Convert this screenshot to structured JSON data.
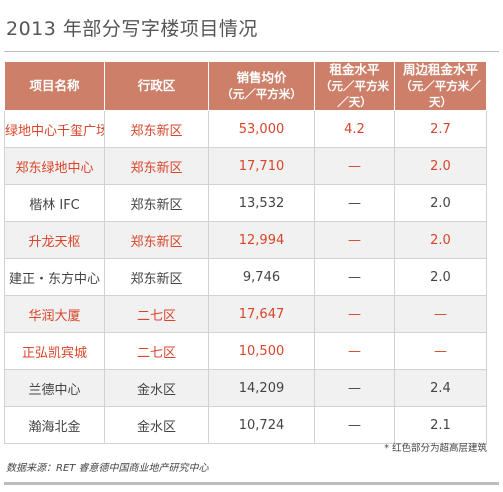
{
  "title": "2013 年部分写字楼项目情况",
  "headers": [
    {
      "main": "项目名称",
      "sub": ""
    },
    {
      "main": "行政区",
      "sub": ""
    },
    {
      "main": "销售均价",
      "sub": "（元／平方米）"
    },
    {
      "main": "租金水平",
      "sub": "（元／平方米／天）"
    },
    {
      "main": "周边租金水平",
      "sub": "（元／平方米／天）"
    }
  ],
  "rows": [
    {
      "name": "绿地中心千玺广场",
      "district": "郑东新区",
      "price": "53,000",
      "rent": "4.2",
      "nearby": "2.7",
      "highlight": true
    },
    {
      "name": "郑东绿地中心",
      "district": "郑东新区",
      "price": "17,710",
      "rent": "—",
      "nearby": "2.0",
      "highlight": true
    },
    {
      "name": "楷林 IFC",
      "district": "郑东新区",
      "price": "13,532",
      "rent": "—",
      "nearby": "2.0",
      "highlight": false
    },
    {
      "name": "升龙天枢",
      "district": "郑东新区",
      "price": "12,994",
      "rent": "—",
      "nearby": "2.0",
      "highlight": true
    },
    {
      "name": "建正・东方中心",
      "district": "郑东新区",
      "price": "9,746",
      "rent": "—",
      "nearby": "2.0",
      "highlight": false
    },
    {
      "name": "华润大厦",
      "district": "二七区",
      "price": "17,647",
      "rent": "—",
      "nearby": "—",
      "highlight": true
    },
    {
      "name": "正弘凯宾城",
      "district": "二七区",
      "price": "10,500",
      "rent": "—",
      "nearby": "—",
      "highlight": true
    },
    {
      "name": "兰德中心",
      "district": "金水区",
      "price": "14,209",
      "rent": "—",
      "nearby": "2.4",
      "highlight": false
    },
    {
      "name": "瀚海北金",
      "district": "金水区",
      "price": "10,724",
      "rent": "—",
      "nearby": "2.1",
      "highlight": false
    }
  ],
  "footnote": "* 红色部分为超高层建筑",
  "source": "数据来源：RET 睿意德中国商业地产研究中心",
  "colors": {
    "header_bg": "#cd7f6a",
    "highlight_text": "#d9452a",
    "stripe_bg": "#f1f1f1"
  }
}
